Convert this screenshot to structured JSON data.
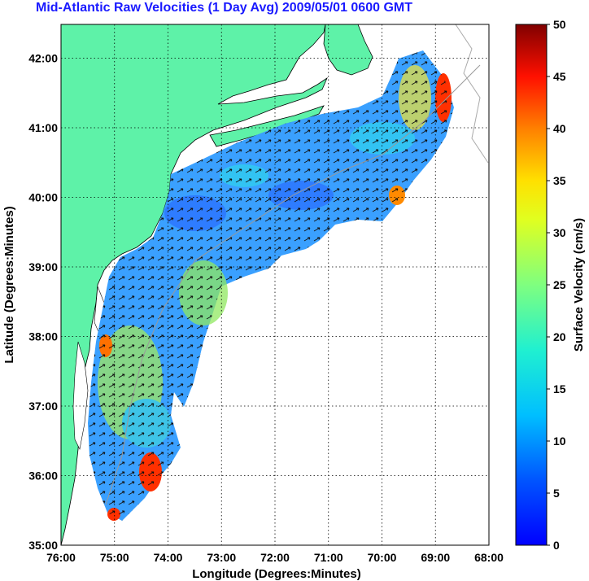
{
  "title": "Mid-Atlantic Raw Velocities (1 Day Avg) 2009/05/01 0600 GMT",
  "x_axis": {
    "label": "Longitude (Degrees:Minutes)",
    "ticks": [
      "76:00",
      "75:00",
      "74:00",
      "73:00",
      "72:00",
      "71:00",
      "70:00",
      "69:00",
      "68:00"
    ]
  },
  "y_axis": {
    "label": "Latitude (Degrees:Minutes)",
    "ticks": [
      "35:00",
      "36:00",
      "37:00",
      "38:00",
      "39:00",
      "40:00",
      "41:00",
      "42:00"
    ]
  },
  "colorbar": {
    "label": "Surface Velocity (cm/s)",
    "ticks": [
      "0",
      "5",
      "10",
      "15",
      "20",
      "25",
      "30",
      "35",
      "40",
      "45",
      "50"
    ],
    "range": [
      0,
      50
    ],
    "colormap": "jet"
  },
  "colors": {
    "land": "#5ef2a8",
    "title": "#1a1aff",
    "ocean_base": "#ffffff"
  }
}
